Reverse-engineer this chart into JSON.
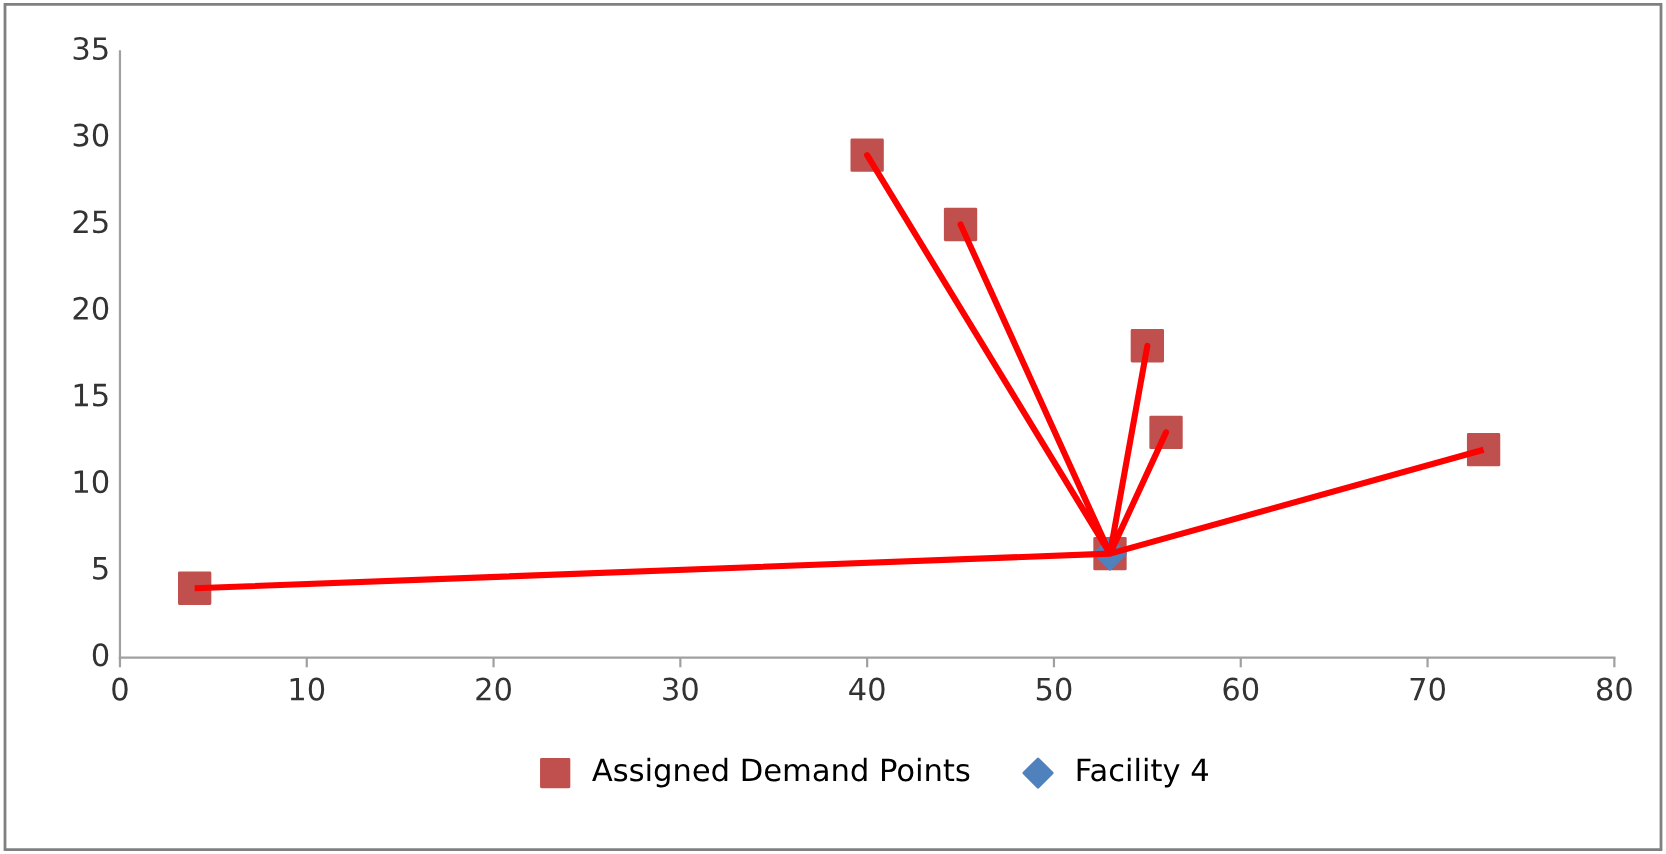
{
  "chart_data": {
    "type": "scatter",
    "xlim": [
      0,
      80
    ],
    "xticks": [
      0,
      10,
      20,
      30,
      40,
      50,
      60,
      70,
      80
    ],
    "ylim": [
      0,
      35
    ],
    "yticks": [
      0,
      5,
      10,
      15,
      20,
      25,
      30,
      35
    ],
    "grid": false,
    "legend": "bottom",
    "series": [
      {
        "type": "line",
        "color": "#ff0000",
        "marker": "none",
        "x": [
          4,
          53,
          40,
          53,
          45,
          53,
          55,
          53,
          56,
          53,
          73
        ],
        "values": [
          4,
          6,
          29,
          6,
          25,
          6,
          18,
          6,
          13,
          6,
          12
        ]
      },
      {
        "name": "Assigned Demand Points",
        "color": "#c0504d",
        "marker": "square",
        "x": [
          4,
          40,
          45,
          53,
          55,
          56,
          73
        ],
        "values": [
          4,
          29,
          25,
          6,
          18,
          13,
          12
        ]
      },
      {
        "name": "Facility 4",
        "color": "#4f81bd",
        "marker": "diamond",
        "x": [
          53
        ],
        "values": [
          6
        ]
      }
    ]
  }
}
